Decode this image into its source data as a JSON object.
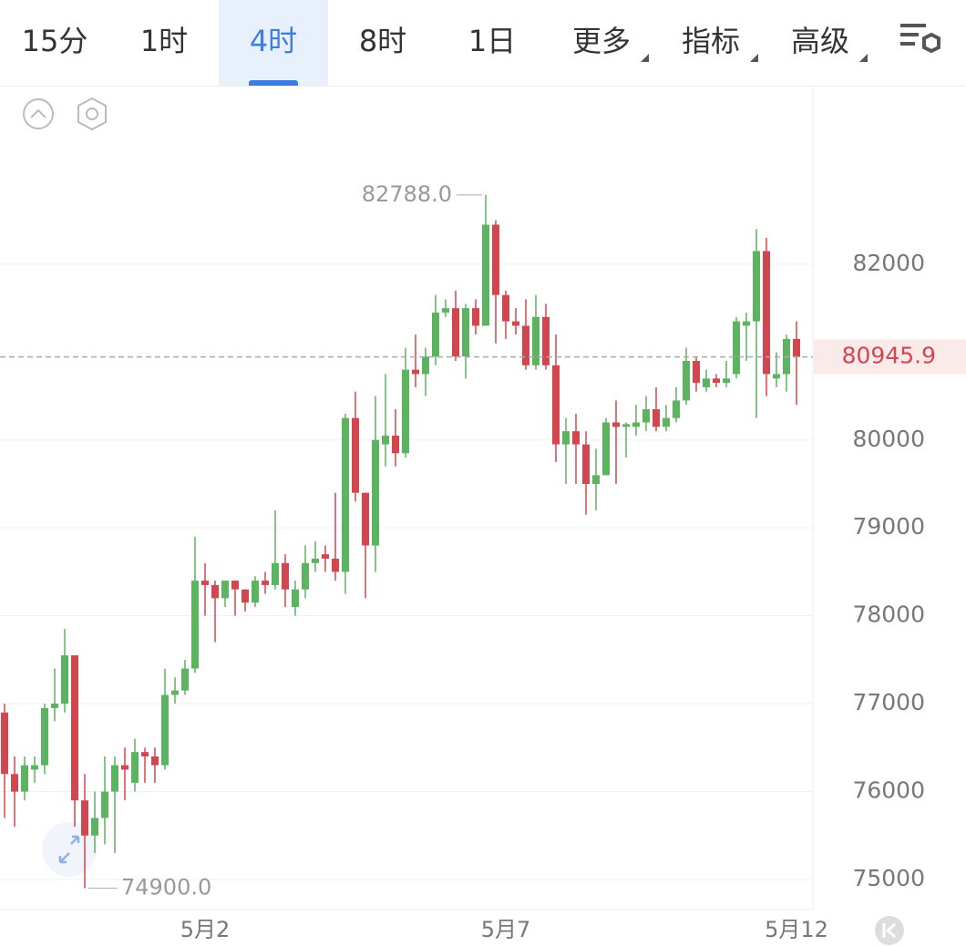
{
  "tabs": [
    "15分",
    "1时",
    "4时",
    "8时",
    "1日",
    "更多",
    "指标",
    "高级"
  ],
  "chart_data": {
    "type": "candlestick",
    "categories": [
      null,
      null,
      null,
      null,
      null,
      null,
      null,
      null,
      null,
      null,
      null,
      null,
      null,
      null,
      null,
      null,
      null,
      null,
      null,
      null,
      "5月2",
      null,
      null,
      null,
      null,
      null,
      null,
      null,
      null,
      null,
      null,
      null,
      null,
      null,
      null,
      null,
      null,
      null,
      null,
      null,
      null,
      null,
      null,
      null,
      null,
      null,
      null,
      null,
      null,
      null,
      "5月7",
      null,
      null,
      null,
      null,
      null,
      null,
      null,
      null,
      null,
      null,
      null,
      null,
      null,
      null,
      null,
      null,
      null,
      null,
      null,
      null,
      null,
      null,
      null,
      null,
      null,
      null,
      null,
      null,
      "5月12"
    ],
    "open": [
      76900,
      76200,
      76000,
      76250,
      76300,
      76950,
      77000,
      77550,
      75900,
      75500,
      75700,
      76000,
      76300,
      76100,
      76450,
      76400,
      76300,
      77100,
      77150,
      77400,
      78400,
      78350,
      78200,
      78400,
      78300,
      78150,
      78400,
      78350,
      78600,
      78100,
      78300,
      78600,
      78700,
      78650,
      78500,
      80250,
      79400,
      78800,
      79950,
      80050,
      79850,
      80800,
      80750,
      80950,
      81450,
      81500,
      80950,
      81500,
      81300,
      82450,
      81650,
      81350,
      81300,
      80850,
      81400,
      80850,
      79950,
      80100,
      79950,
      79500,
      79600,
      80200,
      80150,
      80150,
      80200,
      80350,
      80150,
      80250,
      80450,
      80900,
      80600,
      80700,
      80650,
      80750,
      81300,
      81350,
      82150,
      80700,
      80750,
      81150
    ],
    "high": [
      77000,
      76400,
      76400,
      76400,
      77000,
      77400,
      77850,
      77550,
      76200,
      76000,
      76400,
      76400,
      76500,
      76600,
      76500,
      76500,
      77400,
      77300,
      77500,
      78900,
      78600,
      78400,
      78400,
      78400,
      78300,
      78450,
      78500,
      79200,
      78700,
      78400,
      78800,
      78850,
      78800,
      79400,
      80300,
      80550,
      79400,
      80500,
      80750,
      80350,
      81050,
      81200,
      81050,
      81650,
      81600,
      81700,
      81550,
      81600,
      82788,
      82500,
      81700,
      81500,
      81600,
      81650,
      81550,
      81200,
      80250,
      80300,
      80100,
      79900,
      80250,
      80450,
      80200,
      80400,
      80500,
      80600,
      80400,
      80600,
      81050,
      80950,
      80800,
      80750,
      80900,
      81400,
      81450,
      82400,
      82300,
      81000,
      81200,
      81350
    ],
    "low": [
      75700,
      75600,
      75900,
      76100,
      76200,
      76800,
      76900,
      75600,
      74900,
      75300,
      75400,
      75300,
      75900,
      76000,
      76100,
      76100,
      76250,
      77000,
      77100,
      77350,
      78000,
      77700,
      78100,
      78000,
      78050,
      78100,
      78250,
      78300,
      78100,
      78000,
      78200,
      78500,
      78500,
      78400,
      78250,
      79300,
      78200,
      78500,
      79700,
      79700,
      79800,
      80600,
      80500,
      80850,
      81400,
      80900,
      80700,
      81200,
      81300,
      81100,
      81150,
      81200,
      80800,
      80800,
      80800,
      79750,
      79500,
      79500,
      79150,
      79200,
      79600,
      79500,
      79800,
      80050,
      80100,
      80100,
      80100,
      80200,
      80400,
      80550,
      80550,
      80600,
      80600,
      80700,
      80900,
      80250,
      80500,
      80600,
      80550,
      80400
    ],
    "close": [
      76200,
      76000,
      76300,
      76300,
      76950,
      77000,
      77550,
      75900,
      75500,
      75700,
      76000,
      76300,
      76250,
      76450,
      76400,
      76300,
      77100,
      77150,
      77400,
      78400,
      78350,
      78200,
      78400,
      78300,
      78150,
      78400,
      78350,
      78600,
      78300,
      78300,
      78600,
      78650,
      78650,
      78500,
      80250,
      79400,
      78800,
      80000,
      80050,
      79850,
      80800,
      80750,
      80950,
      81450,
      81500,
      80950,
      81500,
      81300,
      82450,
      81650,
      81350,
      81300,
      80850,
      81400,
      80850,
      79950,
      80100,
      79950,
      79500,
      79600,
      80200,
      80150,
      80180,
      80200,
      80350,
      80150,
      80250,
      80450,
      80900,
      80650,
      80700,
      80650,
      80700,
      81350,
      81350,
      82150,
      80750,
      80750,
      81150,
      80945.9
    ],
    "up_color": "#5cb360",
    "down_color": "#d2474f",
    "ylim": [
      74658,
      84021
    ],
    "yticks": [
      75000,
      76000,
      77000,
      78000,
      79000,
      80000,
      82000
    ],
    "grid": true,
    "last_price": 80945.9,
    "high_mark": {
      "value": 82788,
      "label": "82788.0"
    },
    "low_mark": {
      "value": 74900,
      "label": "74900.0"
    }
  }
}
